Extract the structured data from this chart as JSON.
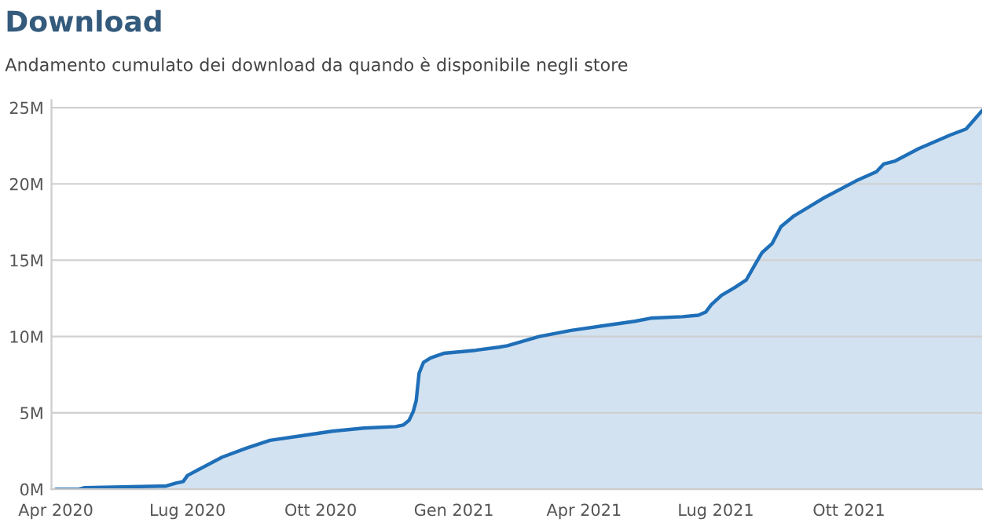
{
  "chart_data": {
    "type": "area",
    "title": "Download",
    "subtitle": "Andamento cumulato dei download da quando è disponibile negli store",
    "x": [
      "2020-04-01",
      "2020-04-17",
      "2020-04-21",
      "2020-06-12",
      "2020-06-16",
      "2020-06-23",
      "2020-06-28",
      "2020-07-01",
      "2020-07-09",
      "2020-07-25",
      "2020-08-11",
      "2020-08-27",
      "2020-09-18",
      "2020-10-09",
      "2020-10-31",
      "2020-11-22",
      "2020-11-27",
      "2020-12-01",
      "2020-12-04",
      "2020-12-06",
      "2020-12-08",
      "2020-12-11",
      "2020-12-16",
      "2020-12-25",
      "2021-01-16",
      "2021-02-01",
      "2021-02-07",
      "2021-03-01",
      "2021-03-23",
      "2021-04-14",
      "2021-05-06",
      "2021-05-17",
      "2021-06-08",
      "2021-06-19",
      "2021-06-24",
      "2021-06-28",
      "2021-07-05",
      "2021-07-14",
      "2021-07-22",
      "2021-07-28",
      "2021-08-02",
      "2021-08-09",
      "2021-08-15",
      "2021-08-24",
      "2021-09-14",
      "2021-10-06",
      "2021-10-20",
      "2021-10-25",
      "2021-11-02",
      "2021-11-18",
      "2021-12-10",
      "2021-12-21",
      "2022-01-01"
    ],
    "series": [
      {
        "color": "#1f6fb8",
        "values": [
          0,
          0.0,
          0.1,
          0.2,
          0.2,
          0.4,
          0.5,
          0.9,
          1.3,
          2.1,
          2.7,
          3.2,
          3.5,
          3.8,
          4.0,
          4.1,
          4.2,
          4.5,
          5.1,
          5.8,
          7.6,
          8.3,
          8.6,
          8.9,
          9.1,
          9.3,
          9.4,
          10.0,
          10.4,
          10.7,
          11.0,
          11.2,
          11.3,
          11.4,
          11.6,
          12.1,
          12.7,
          13.2,
          13.7,
          14.7,
          15.5,
          16.1,
          17.2,
          17.9,
          19.1,
          20.2,
          20.8,
          21.3,
          21.5,
          22.3,
          23.2,
          23.6,
          24.8
        ]
      }
    ],
    "xlim": [
      "2020-03-29",
      "2022-01-01"
    ],
    "xticks": [
      {
        "value": "2020-04-01",
        "label": "Apr 2020"
      },
      {
        "value": "2020-07-01",
        "label": "Lug 2020"
      },
      {
        "value": "2020-10-01",
        "label": "Ott 2020"
      },
      {
        "value": "2021-01-01",
        "label": "Gen 2021"
      },
      {
        "value": "2021-04-01",
        "label": "Apr 2021"
      },
      {
        "value": "2021-07-01",
        "label": "Lug 2021"
      },
      {
        "value": "2021-10-01",
        "label": "Ott 2021"
      }
    ],
    "ylim": [
      0,
      25.5
    ],
    "yticks": [
      {
        "value": 0,
        "label": "0M"
      },
      {
        "value": 5,
        "label": "5M"
      },
      {
        "value": 10,
        "label": "10M"
      },
      {
        "value": 15,
        "label": "15M"
      },
      {
        "value": 20,
        "label": "20M"
      },
      {
        "value": 25,
        "label": "25M"
      }
    ],
    "grid": "y",
    "legend": false
  }
}
